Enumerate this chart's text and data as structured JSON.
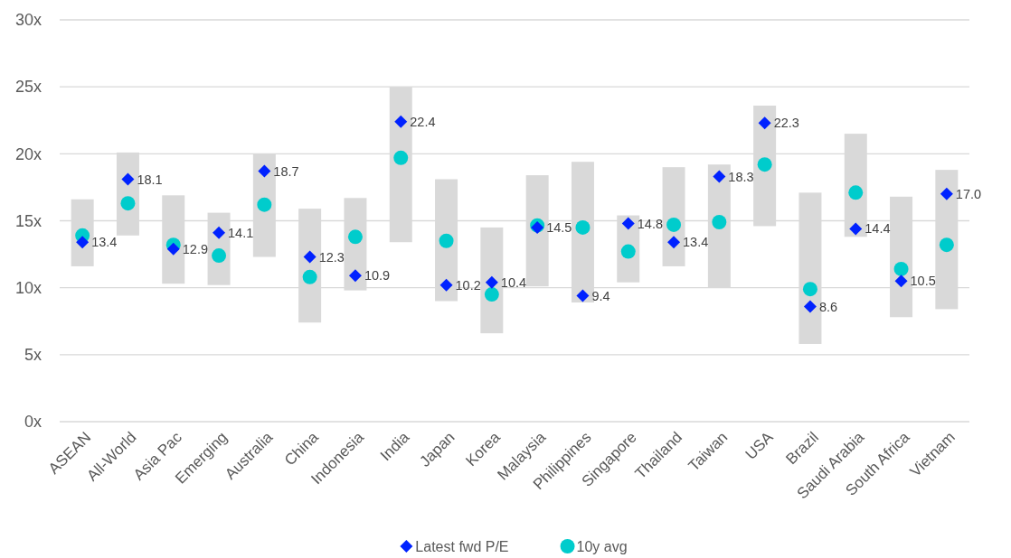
{
  "chart_data": {
    "type": "bar",
    "categories": [
      "ASEAN",
      "All-World",
      "Asia Pac",
      "Emerging",
      "Australia",
      "China",
      "Indonesia",
      "India",
      "Japan",
      "Korea",
      "Malaysia",
      "Philippines",
      "Singapore",
      "Thailand",
      "Taiwan",
      "USA",
      "Brazil",
      "Saudi Arabia",
      "South Africa",
      "Vietnam"
    ],
    "ylim": [
      0,
      30
    ],
    "yticks": [
      {
        "value": 0,
        "label": "0x"
      },
      {
        "value": 5,
        "label": "5x"
      },
      {
        "value": 10,
        "label": "10x"
      },
      {
        "value": 15,
        "label": "15x"
      },
      {
        "value": 20,
        "label": "20x"
      },
      {
        "value": 25,
        "label": "25x"
      },
      {
        "value": 30,
        "label": "30x"
      }
    ],
    "grid": "y",
    "legend": "bottom",
    "series": [
      {
        "type": "bar",
        "color": "#d9d9d9",
        "base": [
          11.6,
          13.9,
          10.3,
          10.2,
          12.3,
          7.4,
          9.8,
          13.4,
          9.0,
          6.6,
          10.1,
          8.9,
          10.4,
          11.6,
          10.0,
          14.6,
          5.8,
          13.8,
          7.8,
          8.4
        ],
        "values": [
          5.0,
          6.2,
          6.6,
          5.4,
          7.7,
          8.5,
          6.9,
          11.6,
          9.1,
          7.9,
          8.3,
          10.5,
          5.0,
          7.4,
          9.2,
          9.0,
          11.3,
          7.7,
          9.0,
          10.4
        ]
      },
      {
        "type": "scatter",
        "name": "Latest fwd P/E",
        "color": "#0022ff",
        "marker": "diamond",
        "values": [
          13.4,
          18.1,
          12.9,
          14.1,
          18.7,
          12.3,
          10.9,
          22.4,
          10.2,
          10.4,
          14.5,
          9.4,
          14.8,
          13.4,
          18.3,
          22.3,
          8.6,
          14.4,
          10.5,
          17.0
        ],
        "value_labels": [
          "13.4",
          "18.1",
          "12.9",
          "14.1",
          "18.7",
          "12.3",
          "10.9",
          "22.4",
          "10.2",
          "10.4",
          "14.5",
          "9.4",
          "14.8",
          "13.4",
          "18.3",
          "22.3",
          "8.6",
          "14.4",
          "10.5",
          "17.0"
        ]
      },
      {
        "type": "scatter",
        "name": "10y avg",
        "color": "#00cccc",
        "marker": "circle",
        "values": [
          13.9,
          16.3,
          13.2,
          12.4,
          16.2,
          10.8,
          13.8,
          19.7,
          13.5,
          9.5,
          14.65,
          14.5,
          12.7,
          14.7,
          14.9,
          19.2,
          9.9,
          17.1,
          11.4,
          13.2
        ]
      }
    ]
  }
}
